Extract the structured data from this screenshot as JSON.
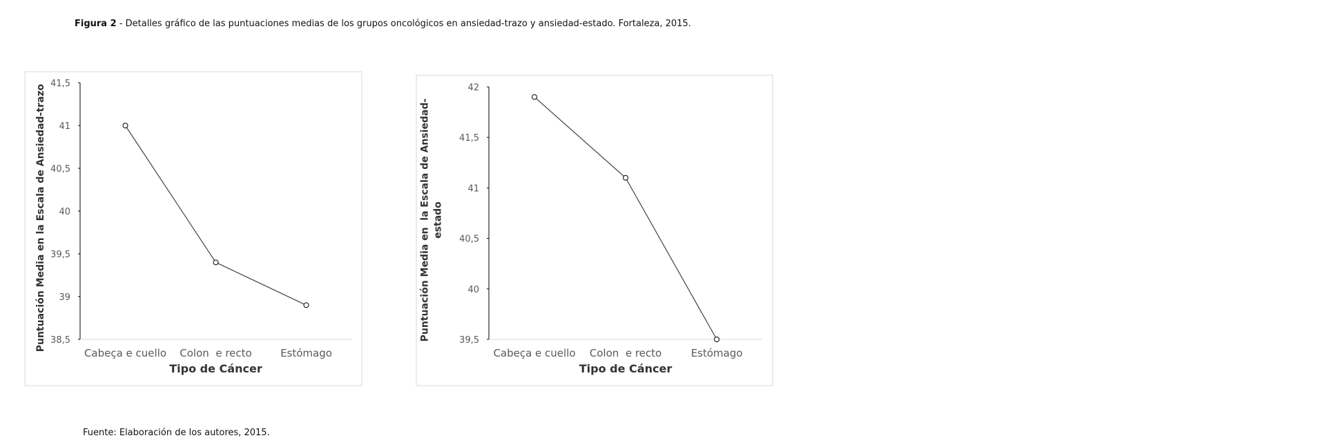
{
  "caption": {
    "label": "Figura 2",
    "text": "- Detalles gráfico de las puntuaciones medias de los grupos oncológicos en ansiedad-trazo  y ansiedad-estado. Fortaleza, 2015."
  },
  "source": "Fuente: Elaboración de los autores, 2015.",
  "chart_data": [
    {
      "type": "line",
      "x_label": "Tipo de Cáncer",
      "y_label": [
        "Puntuación Media en la Escala de Ansiedad-trazo"
      ],
      "categories": [
        "Cabeça e cuello",
        "Colon  e recto",
        "Estómago"
      ],
      "values": [
        41,
        39.4,
        38.9
      ],
      "color": "#404040",
      "ylim": [
        38.5,
        41.5
      ],
      "yticks": [
        {
          "value": 38.5,
          "label": "38,5"
        },
        39,
        {
          "value": 39.5,
          "label": "39,5"
        },
        40,
        {
          "value": 40.5,
          "label": "40,5"
        },
        41,
        {
          "value": 41.5,
          "label": "41,5"
        }
      ]
    },
    {
      "type": "line",
      "x_label": "Tipo de Cáncer",
      "y_label": [
        "Puntuación Media en  la Escala de Ansiedad-",
        "estado"
      ],
      "categories": [
        "Cabeça e cuello",
        "Colon  e recto",
        "Estómago"
      ],
      "values": [
        41.9,
        41.1,
        39.5
      ],
      "color": "#404040",
      "ylim": [
        39.5,
        42
      ],
      "yticks": [
        {
          "value": 39.5,
          "label": "39,5"
        },
        40,
        {
          "value": 40.5,
          "label": "40,5"
        },
        41,
        {
          "value": 41.5,
          "label": "41,5"
        },
        42
      ]
    }
  ]
}
